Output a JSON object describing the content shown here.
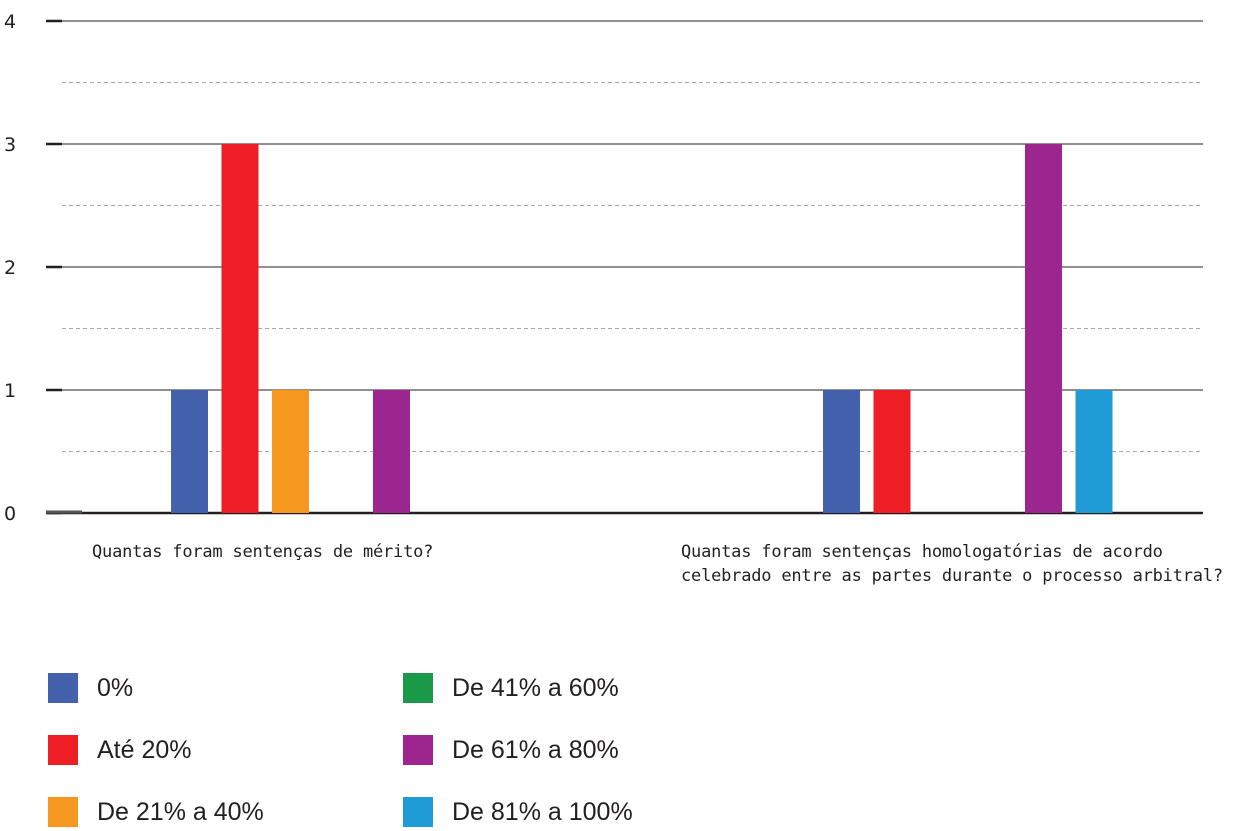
{
  "chart_data": {
    "type": "bar",
    "categories": [
      "Quantas foram sentenças de mérito?",
      "Quantas foram sentenças homologatórias de acordo\ncelebrado entre as partes durante o processo arbitral?"
    ],
    "ylim": [
      0,
      4
    ],
    "yticks": [
      "0",
      "1",
      "2",
      "3",
      "4"
    ],
    "grid": true,
    "legend_position": "bottom",
    "series": [
      {
        "name": "0%",
        "color": "#4461ad",
        "values": [
          1,
          1
        ]
      },
      {
        "name": "Até 20%",
        "color": "#ed1f24",
        "values": [
          3,
          1
        ]
      },
      {
        "name": "De 21% a 40%",
        "color": "#f6981f",
        "values": [
          1,
          0
        ]
      },
      {
        "name": "De 41% a 60%",
        "color": "#1a9a48",
        "values": [
          0,
          0
        ]
      },
      {
        "name": "De 61% a 80%",
        "color": "#9c258f",
        "values": [
          1,
          3
        ]
      },
      {
        "name": "De 81% a 100%",
        "color": "#1f9bd5",
        "values": [
          0,
          1
        ]
      }
    ]
  }
}
